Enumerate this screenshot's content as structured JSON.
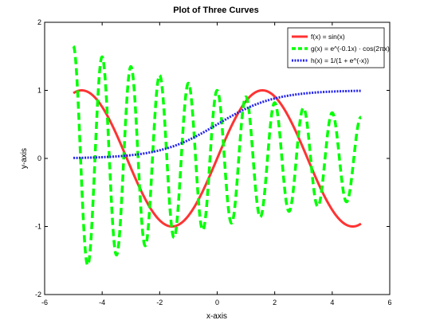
{
  "chart_data": {
    "type": "line",
    "title": "Plot of Three Curves",
    "xlabel": "x-axis",
    "ylabel": "y-axis",
    "xlim": [
      -6,
      6
    ],
    "ylim": [
      -2,
      2
    ],
    "xticks": [
      -6,
      -4,
      -2,
      0,
      2,
      4,
      6
    ],
    "yticks": [
      -2,
      -1,
      0,
      1,
      2
    ],
    "grid": false,
    "legend_position": "top-right",
    "x_domain": [
      -5,
      5
    ],
    "series": [
      {
        "id": "f",
        "name": "f(x) = sin(x)",
        "formula": "sin(x)",
        "color": "#ff3333",
        "style": "solid"
      },
      {
        "id": "g",
        "name": "g(x) = e^(-0.1x) · cos(2πx)",
        "formula": "exp(-0.1x)*cos(2*pi*x)",
        "color": "#00ff00",
        "style": "dashed"
      },
      {
        "id": "h",
        "name": "h(x) = 1/(1 + e^(-x))",
        "formula": "1/(1+exp(-x))",
        "color": "#2222ee",
        "style": "dotted"
      }
    ]
  }
}
